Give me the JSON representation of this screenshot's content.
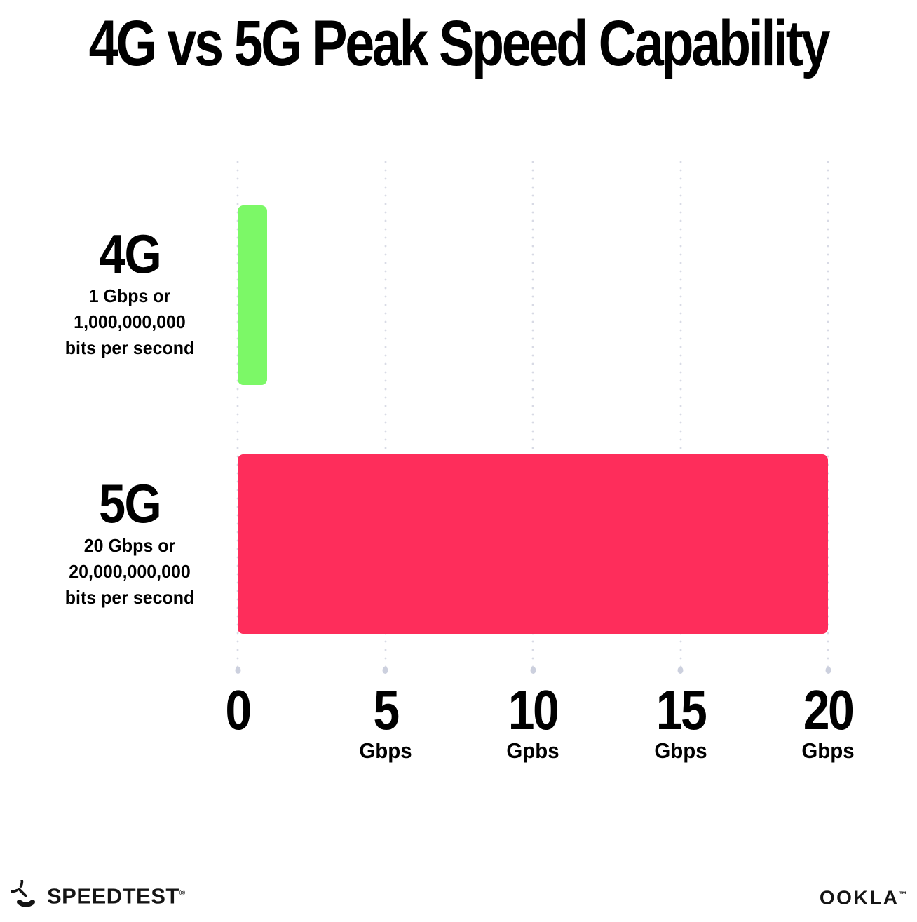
{
  "title": "4G vs 5G Peak Speed Capability",
  "chart_data": {
    "type": "bar",
    "orientation": "horizontal",
    "title": "4G vs 5G Peak Speed Capability",
    "categories": [
      "4G",
      "5G"
    ],
    "values": [
      1,
      20
    ],
    "bar_colors": [
      "#7cf867",
      "#fe2d5b"
    ],
    "xlim": [
      0,
      20
    ],
    "x_ticks": [
      {
        "value": "0",
        "unit": ""
      },
      {
        "value": "5",
        "unit": "Gbps"
      },
      {
        "value": "10",
        "unit": "Gpbs"
      },
      {
        "value": "15",
        "unit": "Gbps"
      },
      {
        "value": "20",
        "unit": "Gbps"
      }
    ],
    "grid": "dotted-vertical",
    "legend": "none",
    "row_labels": [
      {
        "name": "4G",
        "desc_lines": [
          "1 Gbps or",
          "1,000,000,000",
          "bits per second"
        ]
      },
      {
        "name": "5G",
        "desc_lines": [
          "20 Gbps or",
          "20,000,000,000",
          "bits per second"
        ]
      }
    ]
  },
  "colors": {
    "background": "#ffffff",
    "bar_4g": "#7cf867",
    "bar_5g": "#fe2d5b",
    "grid_dot": "#d8dae5",
    "text": "#000000"
  },
  "footer": {
    "speedtest_label": "SPEEDTEST",
    "speedtest_mark": "®",
    "ookla_label": "OOKLA",
    "ookla_mark": "™"
  }
}
